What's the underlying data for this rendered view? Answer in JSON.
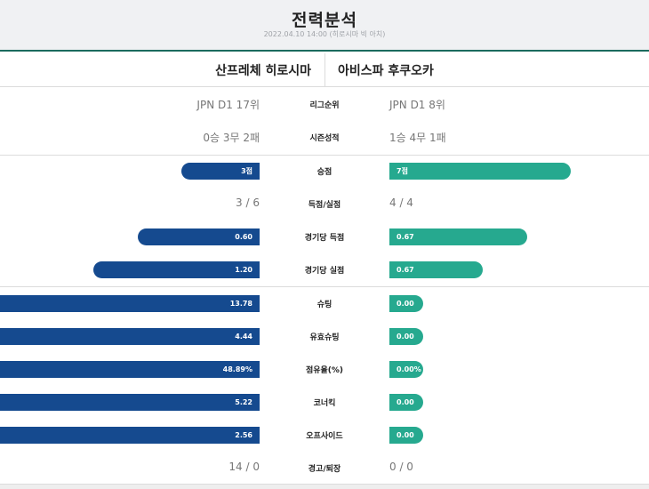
{
  "header": {
    "title": "전력분석",
    "subtitle": "2022.04.10 14:00 (히로시마 빅 아치)"
  },
  "teams": {
    "home": "산프레체 히로시마",
    "away": "아비스파 후쿠오카"
  },
  "stats": {
    "league_rank": {
      "label": "리그순위",
      "home": "JPN D1 17위",
      "away": "JPN D1 8위"
    },
    "season_record": {
      "label": "시즌성적",
      "home": "0승 3무 2패",
      "away": "1승 4무 1패"
    },
    "points": {
      "label": "승점",
      "home": "3점",
      "away": "7점",
      "home_ratio": 0.3,
      "away_ratio": 0.7
    },
    "goals": {
      "label": "득점/실점",
      "home": "3 / 6",
      "away": "4 / 4"
    },
    "goals_per_game": {
      "label": "경기당 득점",
      "home": "0.60",
      "away": "0.67",
      "home_ratio": 0.47,
      "away_ratio": 0.53
    },
    "conceded_per_game": {
      "label": "경기당 실점",
      "home": "1.20",
      "away": "0.67",
      "home_ratio": 0.64,
      "away_ratio": 0.36
    },
    "shots": {
      "label": "슈팅",
      "home": "13.78",
      "away": "0.00",
      "home_ratio": 1.0,
      "away_ratio": 0.0
    },
    "shots_on_target": {
      "label": "유효슈팅",
      "home": "4.44",
      "away": "0.00",
      "home_ratio": 1.0,
      "away_ratio": 0.0
    },
    "possession": {
      "label": "점유율(%)",
      "home": "48.89%",
      "away": "0.00%",
      "home_ratio": 1.0,
      "away_ratio": 0.0
    },
    "corners": {
      "label": "코너킥",
      "home": "5.22",
      "away": "0.00",
      "home_ratio": 1.0,
      "away_ratio": 0.0
    },
    "offsides": {
      "label": "오프사이드",
      "home": "2.56",
      "away": "0.00",
      "home_ratio": 1.0,
      "away_ratio": 0.0
    },
    "cards": {
      "label": "경고/퇴장",
      "home": "14 / 0",
      "away": "0 / 0"
    }
  }
}
